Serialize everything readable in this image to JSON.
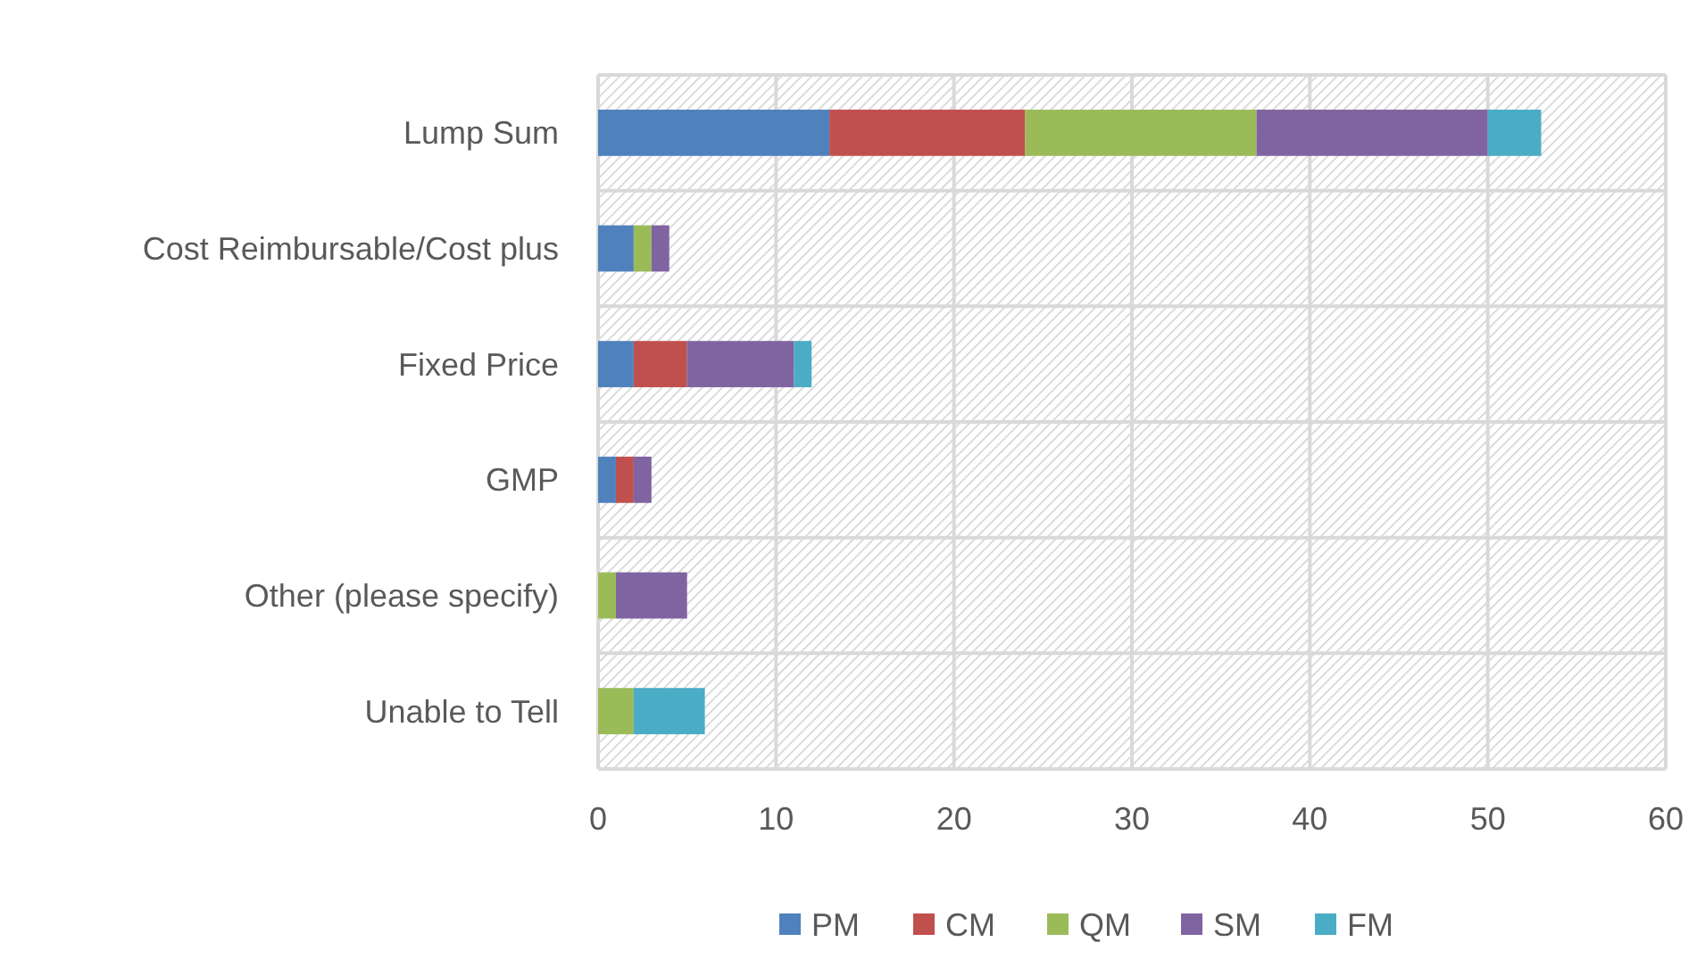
{
  "chart_data": {
    "type": "bar",
    "orientation": "horizontal",
    "stacked": true,
    "categories": [
      "Lump Sum",
      "Cost Reimbursable/Cost plus",
      "Fixed Price",
      "GMP",
      "Other (please specify)",
      "Unable to Tell"
    ],
    "series": [
      {
        "name": "PM",
        "color": "#4f81bd",
        "values": [
          13,
          2,
          2,
          1,
          0,
          0
        ]
      },
      {
        "name": "CM",
        "color": "#c0504d",
        "values": [
          11,
          0,
          3,
          1,
          0,
          0
        ]
      },
      {
        "name": "QM",
        "color": "#9bbb59",
        "values": [
          13,
          1,
          0,
          0,
          1,
          2
        ]
      },
      {
        "name": "SM",
        "color": "#8064a2",
        "values": [
          13,
          1,
          6,
          1,
          4,
          0
        ]
      },
      {
        "name": "FM",
        "color": "#4bacc6",
        "values": [
          3,
          0,
          1,
          0,
          0,
          4
        ]
      }
    ],
    "xlim": [
      0,
      60
    ],
    "xticks": [
      0,
      10,
      20,
      30,
      40,
      50,
      60
    ],
    "grid": true,
    "legend": "bottom"
  }
}
